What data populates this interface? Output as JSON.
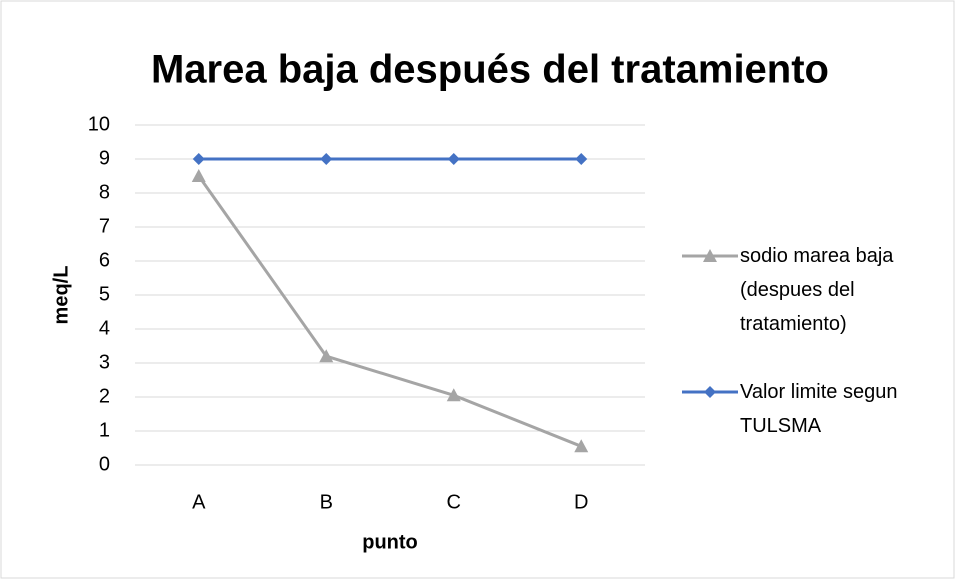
{
  "chart_data": {
    "type": "line",
    "title": "Marea baja después del tratamiento",
    "categories": [
      "A",
      "B",
      "C",
      "D"
    ],
    "series": [
      {
        "name": "sodio marea baja (despues del tratamiento)",
        "color": "#a5a5a5",
        "marker": "triangle",
        "values": [
          8.5,
          3.2,
          2.05,
          0.55
        ]
      },
      {
        "name": "Valor limite segun TULSMA",
        "color": "#4472c4",
        "marker": "diamond",
        "values": [
          9,
          9,
          9,
          9
        ]
      }
    ],
    "xlabel": "punto",
    "ylabel": "meq/L",
    "ylim": [
      0,
      10
    ],
    "yticks": [
      0,
      1,
      2,
      3,
      4,
      5,
      6,
      7,
      8,
      9,
      10
    ],
    "grid": true,
    "legend": "right"
  }
}
